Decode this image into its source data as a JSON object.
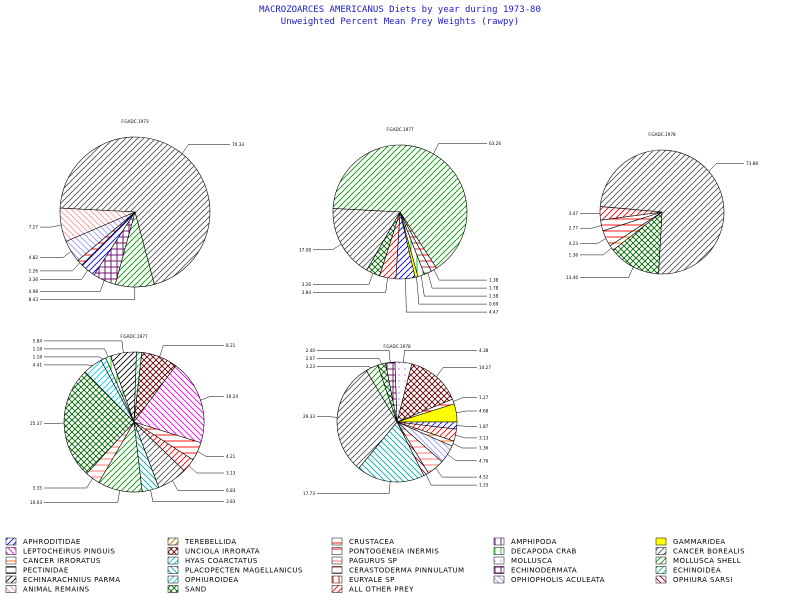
{
  "header": {
    "title": "MACROZOARCES AMERICANUS Diets by year during 1973-80",
    "subtitle": "Unweighted Percent Mean Prey Weights (rawpy)"
  },
  "categories": [
    {
      "name": "APHRODITIDAE",
      "color": "#0000ff",
      "pattern": "diag-r"
    },
    {
      "name": "TEREBELLIDA",
      "color": "#cc6600",
      "pattern": "diag-r"
    },
    {
      "name": "CRUSTACEA",
      "color": "#ff0000",
      "pattern": "horiz"
    },
    {
      "name": "AMPHIPODA",
      "color": "#660099",
      "pattern": "vert"
    },
    {
      "name": "GAMMARIDEA",
      "color": "#ffff00",
      "pattern": "solid"
    },
    {
      "name": "LEPTOCHEIRUS PINGUIS",
      "color": "#ff00ff",
      "pattern": "diag-l"
    },
    {
      "name": "UNCIOLA IRRORATA",
      "color": "#660000",
      "pattern": "cross-diag"
    },
    {
      "name": "PONTOGENEIA INERMIS",
      "color": "#ff0000",
      "pattern": "horiz"
    },
    {
      "name": "DECAPODA CRAB",
      "color": "#00cc00",
      "pattern": "vert"
    },
    {
      "name": "CANCER BOREALIS",
      "color": "#555555",
      "pattern": "diag-r"
    },
    {
      "name": "CANCER IRRORATUS",
      "color": "#ff6600",
      "pattern": "horiz"
    },
    {
      "name": "HYAS COARCTATUS",
      "color": "#00cccc",
      "pattern": "diag-r"
    },
    {
      "name": "PAGURUS SP",
      "color": "#ff6666",
      "pattern": "horiz"
    },
    {
      "name": "MOLLUSCA",
      "color": "#cc99ff",
      "pattern": "dots"
    },
    {
      "name": "MOLLUSCA SHELL",
      "color": "#009900",
      "pattern": "diag-r"
    },
    {
      "name": "PECTINIDAE",
      "color": "#000000",
      "pattern": "horiz"
    },
    {
      "name": "PLACOPECTEN MAGELLANICUS",
      "color": "#00aaaa",
      "pattern": "diag-l"
    },
    {
      "name": "CERASTODERMA PINNULATUM",
      "color": "#993333",
      "pattern": "horiz"
    },
    {
      "name": "ECHINODERMATA",
      "color": "#660066",
      "pattern": "grid"
    },
    {
      "name": "ECHINOIDEA",
      "color": "#00cc66",
      "pattern": "diag-r"
    },
    {
      "name": "ECHINARACHNIUS PARMA",
      "color": "#000000",
      "pattern": "diag-r"
    },
    {
      "name": "OPHIUROIDEA",
      "color": "#00ccff",
      "pattern": "diag-r"
    },
    {
      "name": "EURYALE SP",
      "color": "#cc0000",
      "pattern": "vert"
    },
    {
      "name": "OPHIOPHOLIS ACULEATA",
      "color": "#9999ff",
      "pattern": "diag-l"
    },
    {
      "name": "OPHIURA SARSI",
      "color": "#990033",
      "pattern": "diag-l"
    },
    {
      "name": "ANIMAL REMAINS",
      "color": "#ff9999",
      "pattern": "diag-l"
    },
    {
      "name": "SAND",
      "color": "#006600",
      "pattern": "cross-diag"
    },
    {
      "name": "ALL OTHER PREY",
      "color": "#ff0000",
      "pattern": "diag-r"
    }
  ],
  "chart_data": [
    {
      "type": "pie",
      "title": "F.GADC.1973",
      "slices": [
        {
          "category": "CANCER BOREALIS",
          "value": 70.33,
          "label": "70.33"
        },
        {
          "category": "MOLLUSCA SHELL",
          "value": 8.43,
          "label": "8.43"
        },
        {
          "category": "ECHINODERMATA",
          "value": 4.98,
          "label": "4.98"
        },
        {
          "category": "APHRODITIDAE",
          "value": 3.36,
          "label": "3.36"
        },
        {
          "category": "CRUSTACEA",
          "value": 1.26,
          "label": "1.26"
        },
        {
          "category": "OPHIOPHOLIS ACULEATA",
          "value": 4.82,
          "label": "4.82"
        },
        {
          "category": "ANIMAL REMAINS",
          "value": 7.27,
          "label": "7.27"
        }
      ]
    },
    {
      "type": "pie",
      "title": "F.GADC.1977",
      "slices": [
        {
          "category": "MOLLUSCA SHELL",
          "value": 63.26,
          "label": "63.26"
        },
        {
          "category": "CRUSTACEA",
          "value": 1.38,
          "label": "1.38"
        },
        {
          "category": "CERASTODERMA PINNULATUM",
          "value": 1.78,
          "label": "1.78"
        },
        {
          "category": "DECAPODA CRAB",
          "value": 1.58,
          "label": "1.58"
        },
        {
          "category": "GAMMARIDEA",
          "value": 0.69,
          "label": "0.69"
        },
        {
          "category": "APHRODITIDAE",
          "value": 4.47,
          "label": "4.47"
        },
        {
          "category": "ALL OTHER PREY",
          "value": 3.84,
          "label": "3.84"
        },
        {
          "category": "SAND",
          "value": 3.26,
          "label": "3.26"
        },
        {
          "category": "CANCER BOREALIS",
          "value": 17.08,
          "label": "17.08"
        }
      ]
    },
    {
      "type": "pie",
      "title": "F.GADC.1978",
      "slices": [
        {
          "category": "CANCER BOREALIS",
          "value": 73.88,
          "label": "73.88"
        },
        {
          "category": "SAND",
          "value": 13.46,
          "label": "13.46"
        },
        {
          "category": "CANCER IRRORATUS",
          "value": 1.36,
          "label": "1.36"
        },
        {
          "category": "PONTOGENEIA INERMIS",
          "value": 4.23,
          "label": "4.23"
        },
        {
          "category": "CRUSTACEA",
          "value": 2.77,
          "label": "2.77"
        },
        {
          "category": "ALL OTHER PREY",
          "value": 3.47,
          "label": "3.47"
        }
      ]
    },
    {
      "type": "pie",
      "title": "F.GADC.1977",
      "slices": [
        {
          "category": "ECHINOIDEA",
          "value": 1.2,
          "label": ""
        },
        {
          "category": "UNCIOLA IRRORATA",
          "value": 8.21,
          "label": "8.21"
        },
        {
          "category": "LEPTOCHEIRUS PINGUIS",
          "value": 19.24,
          "label": "19.24"
        },
        {
          "category": "CRUSTACEA",
          "value": 4.21,
          "label": "4.21"
        },
        {
          "category": "ALL OTHER PREY",
          "value": 3.13,
          "label": "3.13"
        },
        {
          "category": "CANCER BOREALIS",
          "value": 6.83,
          "label": "6.83"
        },
        {
          "category": "PLACOPECTEN MAGELLANICUS",
          "value": 3.83,
          "label": "3.83"
        },
        {
          "category": "MOLLUSCA SHELL",
          "value": 10.03,
          "label": "10.03"
        },
        {
          "category": "PAGURUS SP",
          "value": 3.35,
          "label": "3.35"
        },
        {
          "category": "SAND",
          "value": 25.37,
          "label": "25.37"
        },
        {
          "category": "OPHIUROIDEA",
          "value": 4.41,
          "label": "4.41"
        },
        {
          "category": "HYAS COARCTATUS",
          "value": 1.18,
          "label": "1.18"
        },
        {
          "category": "DECAPODA CRAB",
          "value": 1.18,
          "label": "1.18"
        },
        {
          "category": "ECHINARACHNIUS PARMA",
          "value": 5.84,
          "label": "5.84"
        }
      ]
    },
    {
      "type": "pie",
      "title": "F.GADC.1978",
      "slices": [
        {
          "category": "MOLLUSCA",
          "value": 4.38,
          "label": "4.38"
        },
        {
          "category": "UNCIOLA IRRORATA",
          "value": 14.27,
          "label": "14.27"
        },
        {
          "category": "CRUSTACEA",
          "value": 1.27,
          "label": "1.27"
        },
        {
          "category": "GAMMARIDEA",
          "value": 4.68,
          "label": "4.68"
        },
        {
          "category": "APHRODITIDAE",
          "value": 1.87,
          "label": "1.87"
        },
        {
          "category": "ALL OTHER PREY",
          "value": 3.13,
          "label": "3.13"
        },
        {
          "category": "CANCER IRRORATUS",
          "value": 1.36,
          "label": "1.36"
        },
        {
          "category": "OPHIOPHOLIS ACULEATA",
          "value": 4.76,
          "label": "4.76"
        },
        {
          "category": "PAGURUS SP",
          "value": 4.52,
          "label": "4.52"
        },
        {
          "category": "OPHIURA SARSI",
          "value": 1.33,
          "label": "1.33"
        },
        {
          "category": "PLACOPECTEN MAGELLANICUS",
          "value": 17.73,
          "label": "17.73"
        },
        {
          "category": "CANCER BOREALIS",
          "value": 29.33,
          "label": "29.33"
        },
        {
          "category": "MOLLUSCA SHELL",
          "value": 3.23,
          "label": "3.23"
        },
        {
          "category": "SAND",
          "value": 2.07,
          "label": "2.07"
        },
        {
          "category": "ECHINODERMATA",
          "value": 2.4,
          "label": "2.40"
        }
      ]
    }
  ]
}
